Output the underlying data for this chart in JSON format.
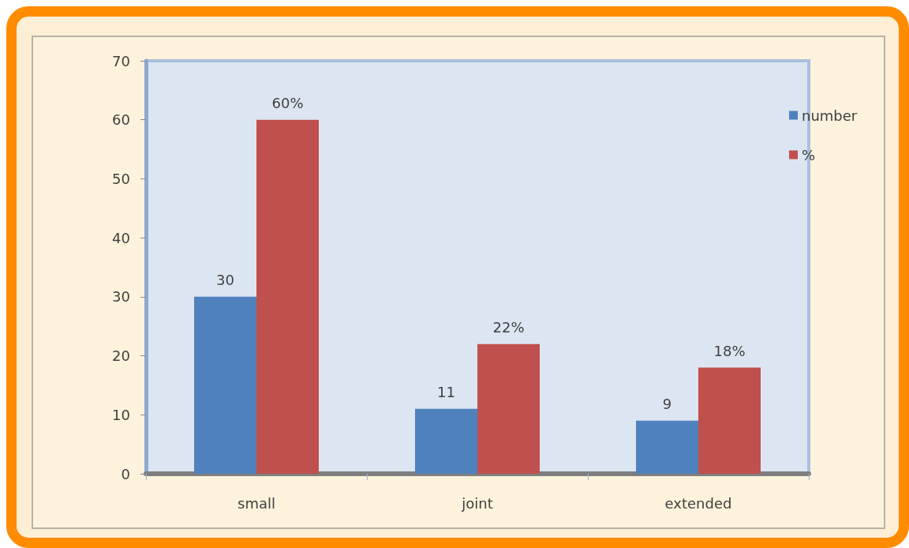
{
  "chart_data": {
    "type": "bar",
    "categories": [
      "small",
      "joint",
      "extended"
    ],
    "series": [
      {
        "name": "number",
        "color": "#4f81bd",
        "values": [
          30,
          11,
          9
        ],
        "value_labels": [
          "30",
          "11",
          "9"
        ]
      },
      {
        "name": "%",
        "color": "#c0504d",
        "values": [
          60,
          22,
          18
        ],
        "value_labels": [
          "60%",
          "22%",
          "18%"
        ]
      }
    ],
    "ylim": [
      0,
      70
    ],
    "yticks": [
      0,
      10,
      20,
      30,
      40,
      50,
      60,
      70
    ],
    "legend": "top right"
  }
}
